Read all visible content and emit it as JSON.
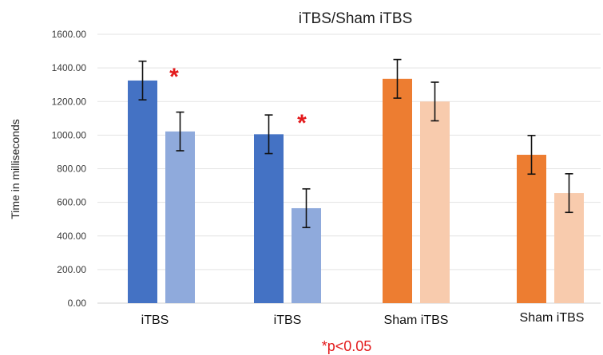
{
  "chart_data": {
    "type": "bar",
    "title": "iTBS/Sham iTBS",
    "xlabel": "",
    "ylabel": "Time in milliseconds",
    "ylim": [
      0,
      1600
    ],
    "yticks": [
      "0.00",
      "200.00",
      "400.00",
      "600.00",
      "800.00",
      "1000.00",
      "1200.00",
      "1400.00",
      "1600.00"
    ],
    "categories": [
      "iTBS",
      "iTBS",
      "Sham iTBS",
      "Sham iTBS"
    ],
    "series": [
      {
        "values": [
          1325,
          1005,
          1335,
          883
        ],
        "errors": [
          115,
          115,
          115,
          115
        ],
        "colors": [
          "#4472C4",
          "#4472C4",
          "#ED7D31",
          "#ED7D31"
        ]
      },
      {
        "values": [
          1022,
          565,
          1200,
          655
        ],
        "errors": [
          115,
          115,
          115,
          115
        ],
        "colors": [
          "#8FAADC",
          "#8FAADC",
          "#F8CBAD",
          "#F8CBAD"
        ]
      }
    ],
    "significance": [
      {
        "category_index": 0,
        "symbol": "*"
      },
      {
        "category_index": 1,
        "symbol": "*"
      }
    ],
    "significance_color": "#E31A1C",
    "footnote": "*p<0.05",
    "grid": true,
    "legend": "none"
  }
}
